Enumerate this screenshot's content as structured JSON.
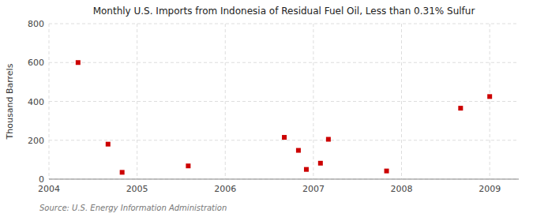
{
  "chart_data": {
    "type": "scatter",
    "title": "Monthly U.S. Imports from Indonesia of Residual Fuel Oil, Less than 0.31% Sulfur",
    "ylabel": "Thousand Barrels",
    "source": "Source: U.S. Energy Information Administration",
    "x": [
      2004.33,
      2004.67,
      2004.83,
      2005.58,
      2006.67,
      2006.83,
      2006.92,
      2007.08,
      2007.17,
      2007.83,
      2008.67,
      2009.0
    ],
    "values": [
      600,
      180,
      35,
      68,
      215,
      148,
      50,
      82,
      205,
      42,
      365,
      425
    ],
    "color": "#cc0000",
    "marker": "square",
    "xlim": [
      2004.0,
      2009.33
    ],
    "xticks": [
      2004,
      2005,
      2006,
      2007,
      2008,
      2009
    ],
    "ylim": [
      0,
      800
    ],
    "yticks": [
      0,
      200,
      400,
      600,
      800
    ],
    "grid": true
  }
}
